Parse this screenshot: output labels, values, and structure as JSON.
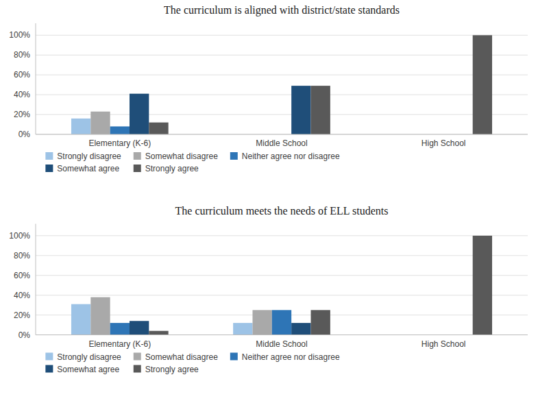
{
  "chart_data": [
    {
      "type": "bar",
      "title": "The curriculum is aligned with district/state standards",
      "categories": [
        "Elementary (K-6)",
        "Middle School",
        "High School"
      ],
      "series": [
        {
          "name": "Strongly disagree",
          "color": "#9DC3E6",
          "values": [
            16,
            0,
            0
          ]
        },
        {
          "name": "Somewhat disagree",
          "color": "#A9A9A9",
          "values": [
            23,
            0,
            0
          ]
        },
        {
          "name": "Neither agree nor disagree",
          "color": "#2E75B6",
          "values": [
            8,
            0,
            0
          ]
        },
        {
          "name": "Somewhat agree",
          "color": "#1F4E79",
          "values": [
            41,
            49,
            0
          ]
        },
        {
          "name": "Strongly agree",
          "color": "#595959",
          "values": [
            12,
            49,
            100
          ]
        }
      ],
      "ylim": [
        0,
        112
      ],
      "yticks": [
        {
          "value": 0,
          "label": "0%"
        },
        {
          "value": 20,
          "label": "20%"
        },
        {
          "value": 40,
          "label": "40%"
        },
        {
          "value": 60,
          "label": "60%"
        },
        {
          "value": 80,
          "label": "80%"
        },
        {
          "value": 100,
          "label": "100%"
        }
      ],
      "grid": true,
      "legend": "bottom"
    },
    {
      "type": "bar",
      "title": "The curriculum meets the needs of ELL students",
      "categories": [
        "Elementary (K-6)",
        "Middle School",
        "High School"
      ],
      "series": [
        {
          "name": "Strongly disagree",
          "color": "#9DC3E6",
          "values": [
            31,
            12,
            0
          ]
        },
        {
          "name": "Somewhat disagree",
          "color": "#A9A9A9",
          "values": [
            38,
            25,
            0
          ]
        },
        {
          "name": "Neither agree nor disagree",
          "color": "#2E75B6",
          "values": [
            12,
            25,
            0
          ]
        },
        {
          "name": "Somewhat agree",
          "color": "#1F4E79",
          "values": [
            14,
            12,
            0
          ]
        },
        {
          "name": "Strongly agree",
          "color": "#595959",
          "values": [
            4,
            25,
            100
          ]
        }
      ],
      "ylim": [
        0,
        112
      ],
      "yticks": [
        {
          "value": 0,
          "label": "0%"
        },
        {
          "value": 20,
          "label": "20%"
        },
        {
          "value": 40,
          "label": "40%"
        },
        {
          "value": 60,
          "label": "60%"
        },
        {
          "value": 80,
          "label": "80%"
        },
        {
          "value": 100,
          "label": "100%"
        }
      ],
      "grid": true,
      "legend": "bottom"
    }
  ]
}
